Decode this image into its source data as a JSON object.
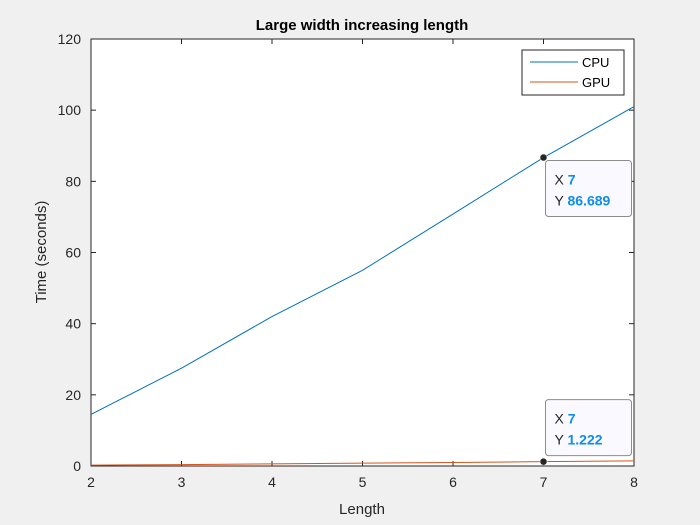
{
  "chart_data": {
    "type": "line",
    "title": "Large width increasing length",
    "xlabel": "Length",
    "ylabel": "Time (seconds)",
    "xlim": [
      2,
      8
    ],
    "ylim": [
      0,
      120
    ],
    "xticks": [
      "2",
      "3",
      "4",
      "5",
      "6",
      "7",
      "8"
    ],
    "yticks": [
      "0",
      "20",
      "40",
      "60",
      "80",
      "100",
      "120"
    ],
    "grid": false,
    "legend_position": "top-right",
    "x": [
      2,
      3,
      4,
      5,
      6,
      7,
      8
    ],
    "series": [
      {
        "name": "CPU",
        "color": "#0072bd",
        "values": [
          14.5,
          27.5,
          42.0,
          55.0,
          70.8,
          86.689,
          101.0
        ]
      },
      {
        "name": "GPU",
        "color": "#d95319",
        "values": [
          0.25,
          0.4,
          0.6,
          0.8,
          1.0,
          1.222,
          1.45
        ]
      }
    ],
    "datatips": [
      {
        "series": "CPU",
        "x": 7,
        "y": 86.689,
        "x_label": "X",
        "y_label": "Y",
        "x_text": "7",
        "y_text": "86.689"
      },
      {
        "series": "GPU",
        "x": 7,
        "y": 1.222,
        "x_label": "X",
        "y_label": "Y",
        "x_text": "7",
        "y_text": "1.222"
      }
    ]
  }
}
